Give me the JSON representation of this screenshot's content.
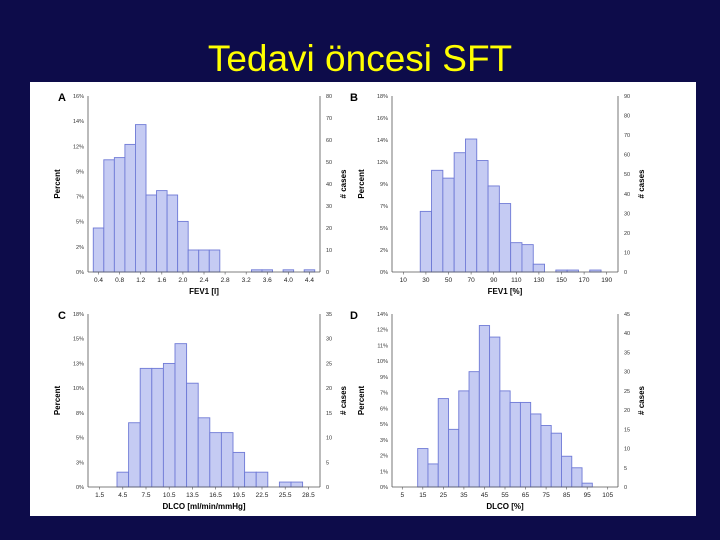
{
  "slide": {
    "title": "Tedavi öncesi SFT"
  },
  "colors": {
    "background": "#0d0c4a",
    "title": "#ffff00",
    "bar_fill": "#c5cbf3",
    "bar_stroke": "#6f7ad6"
  },
  "chart_data": [
    {
      "type": "bar",
      "panel_label": "A",
      "xlabel": "FEV1 [l]",
      "ylabel": "Percent",
      "y2label": "# cases",
      "x_ticks": [
        "0.4",
        "0.8",
        "1.2",
        "1.6",
        "2.0",
        "2.4",
        "2.8",
        "3.2",
        "3.6",
        "4.0",
        "4.4"
      ],
      "x_tick_positions": [
        0.4,
        0.8,
        1.2,
        1.6,
        2.0,
        2.4,
        2.8,
        3.2,
        3.6,
        4.0,
        4.4
      ],
      "xlim": [
        0.2,
        4.6
      ],
      "y_ticks": [
        "0%",
        "2%",
        "5%",
        "7%",
        "9%",
        "12%",
        "14%",
        "16%"
      ],
      "y2_ticks": [
        "0",
        "10",
        "20",
        "30",
        "40",
        "50",
        "60",
        "70",
        "80"
      ],
      "y2lim": [
        0,
        80
      ],
      "bin_width": 0.2,
      "bins": [
        0.4,
        0.6,
        0.8,
        1.0,
        1.2,
        1.4,
        1.6,
        1.8,
        2.0,
        2.2,
        2.4,
        2.6,
        2.8,
        3.0,
        3.2,
        3.4,
        3.6,
        3.8,
        4.0,
        4.2,
        4.4
      ],
      "values": [
        20,
        51,
        52,
        58,
        67,
        35,
        37,
        35,
        23,
        10,
        10,
        10,
        0,
        0,
        0,
        1,
        1,
        0,
        1,
        0,
        1
      ]
    },
    {
      "type": "bar",
      "panel_label": "B",
      "xlabel": "FEV1 [%]",
      "ylabel": "Percent",
      "y2label": "# cases",
      "x_ticks": [
        "10",
        "30",
        "50",
        "70",
        "90",
        "110",
        "130",
        "150",
        "170",
        "190"
      ],
      "x_tick_positions": [
        10,
        30,
        50,
        70,
        90,
        110,
        130,
        150,
        170,
        190
      ],
      "xlim": [
        0,
        200
      ],
      "y_ticks": [
        "0%",
        "2%",
        "5%",
        "7%",
        "9%",
        "12%",
        "14%",
        "16%",
        "18%"
      ],
      "y2_ticks": [
        "0",
        "10",
        "20",
        "30",
        "40",
        "50",
        "60",
        "70",
        "80",
        "90"
      ],
      "y2lim": [
        0,
        90
      ],
      "bin_width": 10,
      "bins": [
        30,
        40,
        50,
        60,
        70,
        80,
        90,
        100,
        110,
        120,
        130,
        140,
        150,
        160,
        170,
        180
      ],
      "values": [
        31,
        52,
        48,
        61,
        68,
        57,
        44,
        35,
        15,
        14,
        4,
        0,
        1,
        1,
        0,
        1
      ]
    },
    {
      "type": "bar",
      "panel_label": "C",
      "xlabel": "DLCO [ml/min/mmHg]",
      "ylabel": "Percent",
      "y2label": "# cases",
      "x_ticks": [
        "1.5",
        "4.5",
        "7.5",
        "10.5",
        "13.5",
        "16.5",
        "19.5",
        "22.5",
        "25.5",
        "28.5"
      ],
      "x_tick_positions": [
        1.5,
        4.5,
        7.5,
        10.5,
        13.5,
        16.5,
        19.5,
        22.5,
        25.5,
        28.5
      ],
      "xlim": [
        0,
        30
      ],
      "y_ticks": [
        "0%",
        "3%",
        "5%",
        "8%",
        "10%",
        "13%",
        "15%",
        "18%"
      ],
      "y2_ticks": [
        "0",
        "5",
        "10",
        "15",
        "20",
        "25",
        "30",
        "35"
      ],
      "y2lim": [
        0,
        35
      ],
      "bin_width": 1.5,
      "bins": [
        4.5,
        6.0,
        7.5,
        9.0,
        10.5,
        12.0,
        13.5,
        15.0,
        16.5,
        18.0,
        19.5,
        21.0,
        22.5,
        24.0,
        25.5,
        27.0
      ],
      "values": [
        3,
        13,
        24,
        24,
        25,
        29,
        21,
        14,
        11,
        11,
        7,
        3,
        3,
        0,
        1,
        1
      ]
    },
    {
      "type": "bar",
      "panel_label": "D",
      "xlabel": "DLCO [%]",
      "ylabel": "Percent",
      "y2label": "# cases",
      "x_ticks": [
        "5",
        "15",
        "25",
        "35",
        "45",
        "55",
        "65",
        "75",
        "85",
        "95",
        "105"
      ],
      "x_tick_positions": [
        5,
        15,
        25,
        35,
        45,
        55,
        65,
        75,
        85,
        95,
        105
      ],
      "xlim": [
        0,
        110
      ],
      "y_ticks": [
        "0%",
        "1%",
        "2%",
        "3%",
        "5%",
        "6%",
        "7%",
        "9%",
        "10%",
        "11%",
        "12%",
        "14%"
      ],
      "y2_ticks": [
        "0",
        "5",
        "10",
        "15",
        "20",
        "25",
        "30",
        "35",
        "40",
        "45"
      ],
      "y2lim": [
        0,
        45
      ],
      "bin_width": 5,
      "bins": [
        15,
        20,
        25,
        30,
        35,
        40,
        45,
        50,
        55,
        60,
        65,
        70,
        75,
        80,
        85,
        90,
        95
      ],
      "values": [
        10,
        6,
        23,
        15,
        25,
        30,
        42,
        39,
        25,
        22,
        22,
        19,
        16,
        14,
        8,
        5,
        1
      ]
    }
  ]
}
